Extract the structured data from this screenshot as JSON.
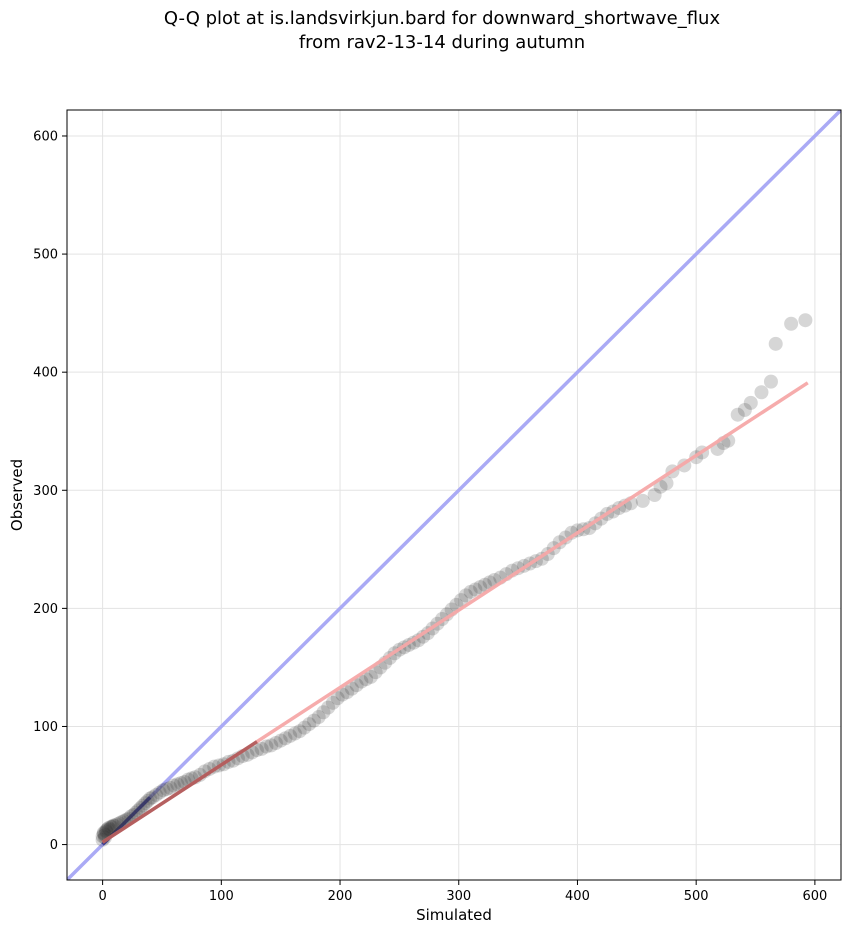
{
  "chart_data": {
    "type": "scatter",
    "title_lines": [
      "Q-Q plot at is.landsvirkjun.bard for downward_shortwave_flux",
      "from rav2-13-14 during autumn"
    ],
    "xlabel": "Simulated",
    "ylabel": "Observed",
    "xlim": [
      -30,
      622
    ],
    "ylim": [
      -30,
      622
    ],
    "xticks": [
      0,
      100,
      200,
      300,
      400,
      500,
      600
    ],
    "yticks": [
      0,
      100,
      200,
      300,
      400,
      500,
      600
    ],
    "grid": true,
    "colors": {
      "points": "#333333",
      "identity_line": "#aaaaf5",
      "fit_line": "#f5a8a8",
      "low_fit_line": "#8b2d2d",
      "low_identity_line": "#3a3ab5"
    },
    "identity_line": {
      "x": [
        -30,
        622
      ],
      "y": [
        -30,
        622
      ]
    },
    "fit_line": {
      "x": [
        0,
        594
      ],
      "y": [
        2,
        391
      ]
    },
    "points": {
      "x": [
        0,
        0,
        1,
        1,
        2,
        2,
        3,
        3,
        4,
        5,
        6,
        7,
        8,
        9,
        10,
        12,
        14,
        16,
        18,
        20,
        22,
        24,
        26,
        28,
        30,
        32,
        34,
        36,
        38,
        40,
        42,
        45,
        48,
        51,
        54,
        57,
        60,
        63,
        66,
        69,
        72,
        75,
        78,
        82,
        86,
        90,
        94,
        98,
        102,
        106,
        110,
        114,
        118,
        122,
        126,
        130,
        134,
        138,
        142,
        146,
        150,
        154,
        158,
        162,
        166,
        170,
        174,
        178,
        182,
        186,
        190,
        194,
        198,
        202,
        206,
        210,
        214,
        218,
        222,
        226,
        230,
        234,
        238,
        242,
        246,
        250,
        254,
        258,
        262,
        266,
        270,
        274,
        278,
        282,
        286,
        290,
        294,
        298,
        302,
        306,
        310,
        314,
        318,
        322,
        326,
        330,
        335,
        340,
        345,
        350,
        355,
        360,
        365,
        370,
        375,
        380,
        385,
        390,
        395,
        400,
        405,
        410,
        415,
        420,
        425,
        430,
        435,
        440,
        445,
        455,
        465,
        470,
        475,
        480,
        490,
        500,
        505,
        518,
        523,
        527,
        535,
        541,
        546,
        555,
        563,
        567,
        580,
        592
      ],
      "y": [
        4,
        7,
        9,
        10,
        6,
        8,
        11,
        12,
        13,
        14,
        13,
        15,
        15,
        16,
        16,
        17,
        18,
        19,
        20,
        21,
        22,
        24,
        25,
        27,
        29,
        31,
        33,
        35,
        37,
        39,
        40,
        42,
        44,
        46,
        47,
        48,
        50,
        51,
        52,
        53,
        55,
        56,
        57,
        59,
        62,
        64,
        66,
        67,
        68,
        70,
        71,
        73,
        75,
        76,
        78,
        80,
        81,
        83,
        84,
        86,
        88,
        90,
        92,
        94,
        96,
        99,
        102,
        105,
        108,
        112,
        116,
        120,
        124,
        127,
        129,
        132,
        135,
        138,
        140,
        142,
        146,
        150,
        154,
        158,
        162,
        165,
        167,
        169,
        171,
        173,
        176,
        179,
        183,
        187,
        191,
        195,
        199,
        203,
        207,
        211,
        214,
        216,
        218,
        220,
        222,
        224,
        226,
        229,
        232,
        234,
        236,
        238,
        240,
        242,
        246,
        251,
        256,
        260,
        264,
        266,
        267,
        268,
        272,
        276,
        280,
        282,
        285,
        287,
        289,
        291,
        296,
        303,
        306,
        316,
        321,
        328,
        332,
        335,
        340,
        342,
        364,
        368,
        374,
        383,
        392,
        424,
        441,
        444
      ]
    }
  }
}
